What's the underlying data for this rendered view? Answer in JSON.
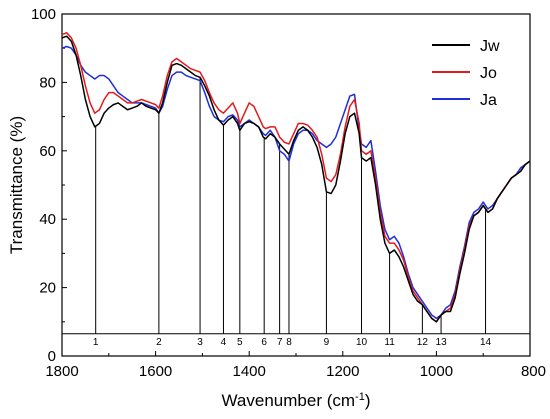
{
  "chart_data": {
    "type": "line",
    "title": "",
    "xlabel_main": "Wavenumber (cm",
    "xlabel_sup": "-1",
    "xlabel_end": ")",
    "ylabel": "Transmittance (%)",
    "xlim": [
      1800,
      800
    ],
    "ylim": [
      0,
      100
    ],
    "x_ticks": [
      1800,
      1600,
      1400,
      1200,
      1000,
      800
    ],
    "y_ticks": [
      0,
      20,
      40,
      60,
      80,
      100
    ],
    "grid": false,
    "legend_position": "top-right",
    "baseline_y": 6.5,
    "peak_markers": [
      {
        "label": "1",
        "x": 1728
      },
      {
        "label": "2",
        "x": 1593
      },
      {
        "label": "3",
        "x": 1505
      },
      {
        "label": "4",
        "x": 1455
      },
      {
        "label": "5",
        "x": 1420
      },
      {
        "label": "6",
        "x": 1368
      },
      {
        "label": "7",
        "x": 1335
      },
      {
        "label": "8",
        "x": 1315
      },
      {
        "label": "9",
        "x": 1235
      },
      {
        "label": "10",
        "x": 1160
      },
      {
        "label": "11",
        "x": 1100
      },
      {
        "label": "12",
        "x": 1030
      },
      {
        "label": "13",
        "x": 990
      },
      {
        "label": "14",
        "x": 895
      }
    ],
    "series": [
      {
        "name": "Jw",
        "color": "#000000",
        "x": [
          1800,
          1790,
          1780,
          1770,
          1760,
          1750,
          1740,
          1730,
          1720,
          1710,
          1700,
          1690,
          1680,
          1670,
          1660,
          1650,
          1640,
          1630,
          1620,
          1610,
          1600,
          1593,
          1585,
          1575,
          1565,
          1555,
          1545,
          1535,
          1525,
          1515,
          1505,
          1495,
          1485,
          1475,
          1465,
          1455,
          1445,
          1435,
          1425,
          1420,
          1410,
          1400,
          1390,
          1380,
          1370,
          1365,
          1355,
          1345,
          1335,
          1325,
          1315,
          1305,
          1295,
          1285,
          1275,
          1265,
          1255,
          1245,
          1235,
          1225,
          1215,
          1205,
          1195,
          1185,
          1175,
          1165,
          1160,
          1150,
          1140,
          1130,
          1120,
          1110,
          1100,
          1090,
          1080,
          1070,
          1060,
          1050,
          1040,
          1030,
          1020,
          1010,
          1000,
          990,
          980,
          970,
          960,
          950,
          940,
          930,
          920,
          910,
          900,
          895,
          890,
          880,
          870,
          860,
          850,
          840,
          830,
          820,
          810,
          800
        ],
        "y": [
          93,
          93.5,
          92,
          88,
          82,
          75,
          70,
          67,
          68,
          71,
          72.5,
          73.5,
          74,
          73,
          72,
          72.5,
          73,
          74,
          73,
          72.5,
          72,
          71,
          74,
          80,
          85,
          85.5,
          85,
          84,
          83,
          82,
          81.5,
          79,
          76,
          72,
          69,
          67.5,
          69,
          70,
          68,
          66,
          68,
          68.5,
          68,
          67,
          64,
          63.5,
          65,
          64,
          62,
          60.5,
          59,
          63,
          66,
          67,
          66,
          64,
          61,
          56,
          48,
          47.5,
          50,
          57,
          65,
          70,
          71,
          65,
          58,
          57,
          58,
          50,
          40,
          33,
          30,
          31,
          29,
          26,
          22,
          18,
          16,
          15,
          13,
          11,
          10,
          12,
          13,
          13,
          17,
          24,
          30,
          37,
          41,
          42,
          44,
          43,
          42,
          43,
          46,
          48,
          50,
          52,
          53,
          54,
          56,
          57
        ]
      },
      {
        "name": "Jo",
        "color": "#e31a1c",
        "x": [
          1800,
          1790,
          1780,
          1770,
          1760,
          1750,
          1740,
          1730,
          1720,
          1710,
          1700,
          1690,
          1680,
          1670,
          1660,
          1650,
          1640,
          1630,
          1620,
          1610,
          1600,
          1593,
          1585,
          1575,
          1565,
          1555,
          1545,
          1535,
          1525,
          1515,
          1505,
          1495,
          1485,
          1475,
          1465,
          1455,
          1445,
          1435,
          1425,
          1420,
          1410,
          1400,
          1390,
          1380,
          1370,
          1365,
          1355,
          1345,
          1335,
          1325,
          1315,
          1305,
          1295,
          1285,
          1275,
          1265,
          1255,
          1245,
          1235,
          1225,
          1215,
          1205,
          1195,
          1185,
          1175,
          1165,
          1160,
          1150,
          1140,
          1130,
          1120,
          1110,
          1100,
          1090,
          1080,
          1070,
          1060,
          1050,
          1040,
          1030,
          1020,
          1010,
          1000,
          990,
          980,
          970,
          960,
          950,
          940,
          930,
          920,
          910,
          900,
          895,
          890,
          880,
          870,
          860,
          850,
          840,
          830,
          820,
          810,
          800
        ],
        "y": [
          94,
          94.5,
          93,
          90,
          85,
          79,
          74,
          71,
          72,
          75,
          77,
          77,
          76,
          75,
          74,
          74,
          74.5,
          75,
          74.5,
          74,
          73.5,
          72.5,
          76,
          82,
          86,
          87,
          86,
          85,
          84,
          83.5,
          83,
          80.5,
          77,
          74,
          72,
          71,
          72.5,
          74,
          71,
          68,
          71,
          74,
          73,
          70,
          67,
          66.5,
          67,
          67,
          64,
          62.5,
          62,
          65,
          68,
          68,
          67.5,
          66,
          64,
          59,
          52,
          51,
          53,
          59,
          67,
          73,
          75,
          68,
          60,
          59,
          60,
          52,
          42,
          35,
          33,
          33,
          31,
          28,
          23,
          19,
          17,
          15,
          13,
          11,
          10,
          12,
          13,
          14,
          18,
          25,
          31,
          38,
          41,
          42,
          44,
          43,
          42,
          43,
          46,
          48,
          50,
          52,
          53,
          54,
          56,
          57
        ]
      },
      {
        "name": "Ja",
        "color": "#1f2fd6",
        "x": [
          1800,
          1790,
          1780,
          1770,
          1760,
          1750,
          1740,
          1730,
          1720,
          1710,
          1700,
          1690,
          1680,
          1670,
          1660,
          1650,
          1640,
          1630,
          1620,
          1610,
          1600,
          1593,
          1585,
          1575,
          1565,
          1555,
          1545,
          1535,
          1525,
          1515,
          1505,
          1495,
          1485,
          1475,
          1465,
          1455,
          1445,
          1435,
          1425,
          1420,
          1410,
          1400,
          1390,
          1380,
          1370,
          1365,
          1355,
          1345,
          1335,
          1325,
          1315,
          1305,
          1295,
          1285,
          1275,
          1265,
          1255,
          1245,
          1235,
          1225,
          1215,
          1205,
          1195,
          1185,
          1175,
          1165,
          1160,
          1150,
          1140,
          1130,
          1120,
          1110,
          1100,
          1090,
          1080,
          1070,
          1060,
          1050,
          1040,
          1030,
          1020,
          1010,
          1000,
          990,
          980,
          970,
          960,
          950,
          940,
          930,
          920,
          910,
          900,
          895,
          890,
          880,
          870,
          860,
          850,
          840,
          830,
          820,
          810,
          800
        ],
        "y": [
          90,
          90.5,
          90,
          88,
          85,
          83,
          82,
          81,
          82,
          82,
          81,
          79,
          77,
          76,
          75,
          74,
          74,
          74,
          73.5,
          73,
          72.5,
          71,
          73,
          78,
          82,
          83,
          83,
          82,
          81.5,
          81,
          80.5,
          77,
          73,
          70,
          69,
          68.5,
          70,
          70.5,
          69,
          67,
          68,
          69,
          68,
          67,
          65,
          64.5,
          66,
          64,
          60,
          59,
          57,
          62,
          65,
          66,
          66,
          65,
          63,
          62,
          61,
          62,
          64,
          68,
          72,
          76,
          76.5,
          66,
          62,
          61,
          63,
          54,
          44,
          37,
          34,
          35,
          33,
          29,
          24,
          20,
          18,
          16,
          14,
          12,
          11,
          12,
          14,
          15,
          19,
          26,
          32,
          39,
          42,
          43,
          45,
          44,
          43,
          44,
          46,
          48,
          50,
          52,
          53,
          55,
          56,
          57
        ]
      }
    ]
  }
}
